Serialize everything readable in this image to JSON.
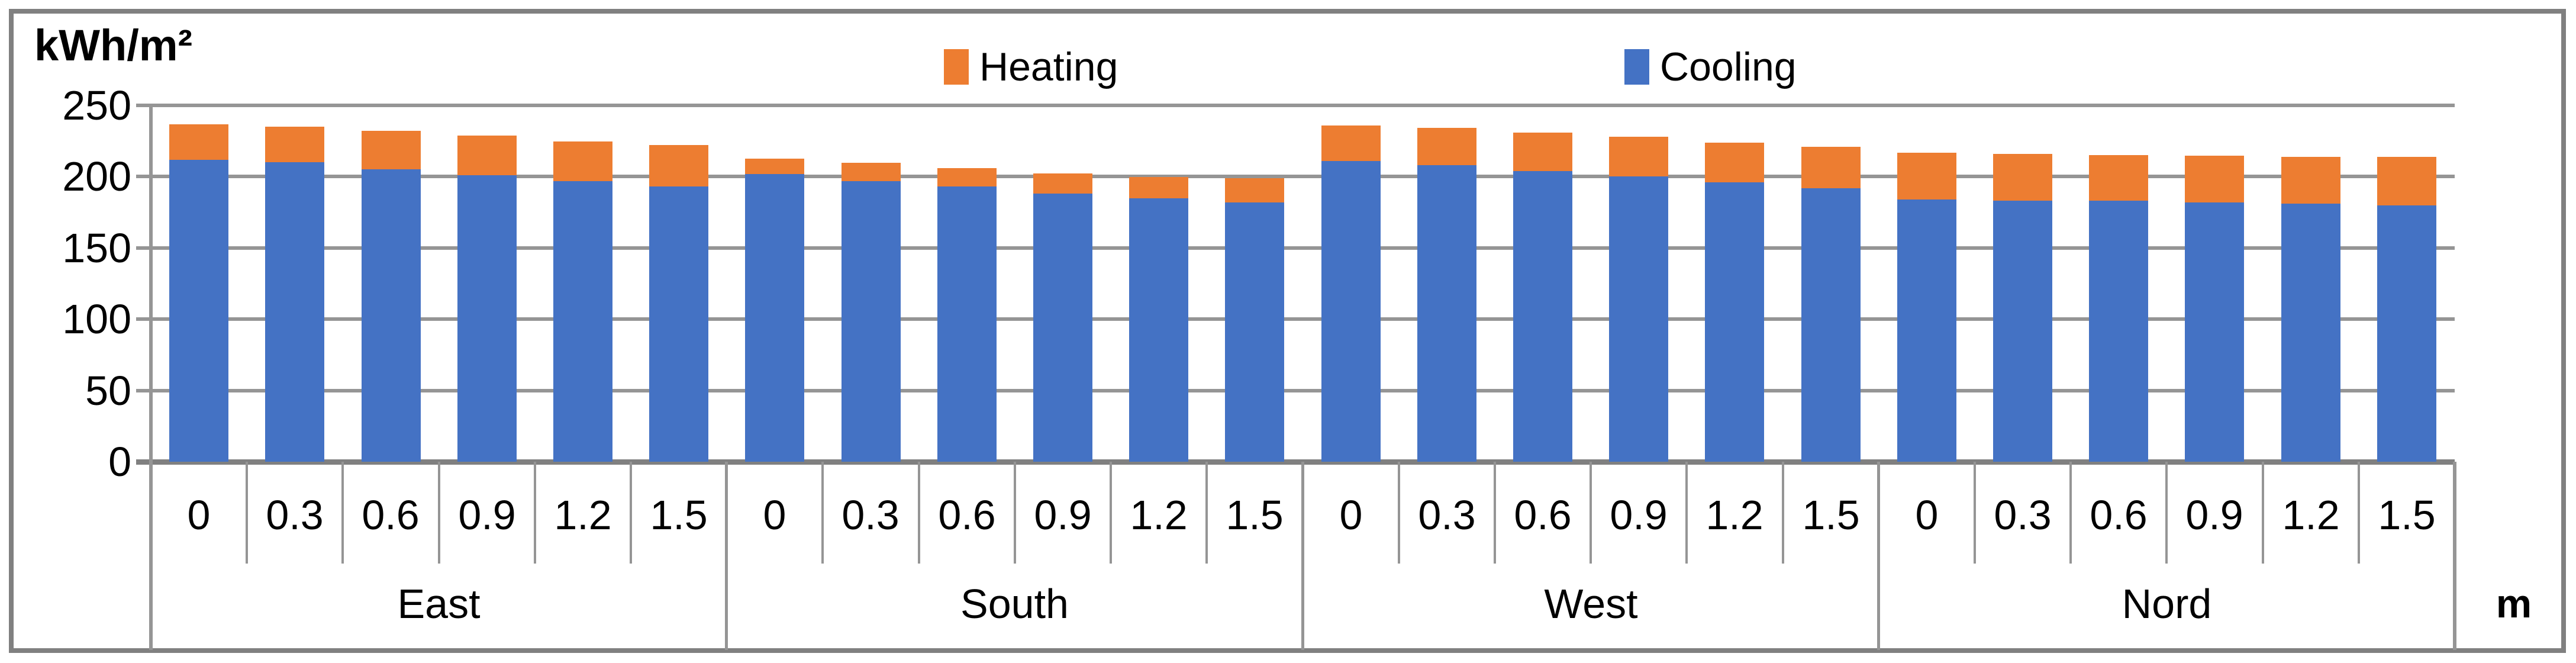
{
  "title": "kWh/m²",
  "unit_label": "m",
  "legend": {
    "heating_label": "Heating",
    "cooling_label": "Cooling"
  },
  "colors": {
    "heating": "#ED7D31",
    "cooling": "#4472C4",
    "gridline": "#959595",
    "axis": "#808080",
    "border": "#808080"
  },
  "y_axis": {
    "ticks": [
      0,
      50,
      100,
      150,
      200,
      250
    ],
    "max": 250
  },
  "chart_data": {
    "type": "bar",
    "stacked": true,
    "title": "kWh/m²",
    "xlabel": "m",
    "ylabel": "kWh/m²",
    "ylim": [
      0,
      250
    ],
    "grid": true,
    "legend_position": "top",
    "groups": [
      "East",
      "South",
      "West",
      "Nord"
    ],
    "depths_m": [
      "0",
      "0.3",
      "0.6",
      "0.9",
      "1.2",
      "1.5"
    ],
    "series": [
      {
        "name": "Cooling",
        "color": "#4472C4",
        "values": {
          "East": [
            212,
            210,
            205,
            201,
            197,
            193
          ],
          "South": [
            202,
            197,
            193,
            188,
            185,
            182
          ],
          "West": [
            211,
            208,
            204,
            200,
            196,
            192
          ],
          "Nord": [
            184,
            183,
            183,
            182,
            181,
            180
          ]
        }
      },
      {
        "name": "Heating",
        "color": "#ED7D31",
        "values": {
          "East": [
            25,
            25,
            27,
            28,
            28,
            29
          ],
          "South": [
            11,
            13,
            13,
            14,
            15,
            17
          ],
          "West": [
            25,
            26,
            27,
            28,
            28,
            29
          ],
          "Nord": [
            33,
            33,
            32,
            33,
            33,
            34
          ]
        }
      }
    ]
  }
}
